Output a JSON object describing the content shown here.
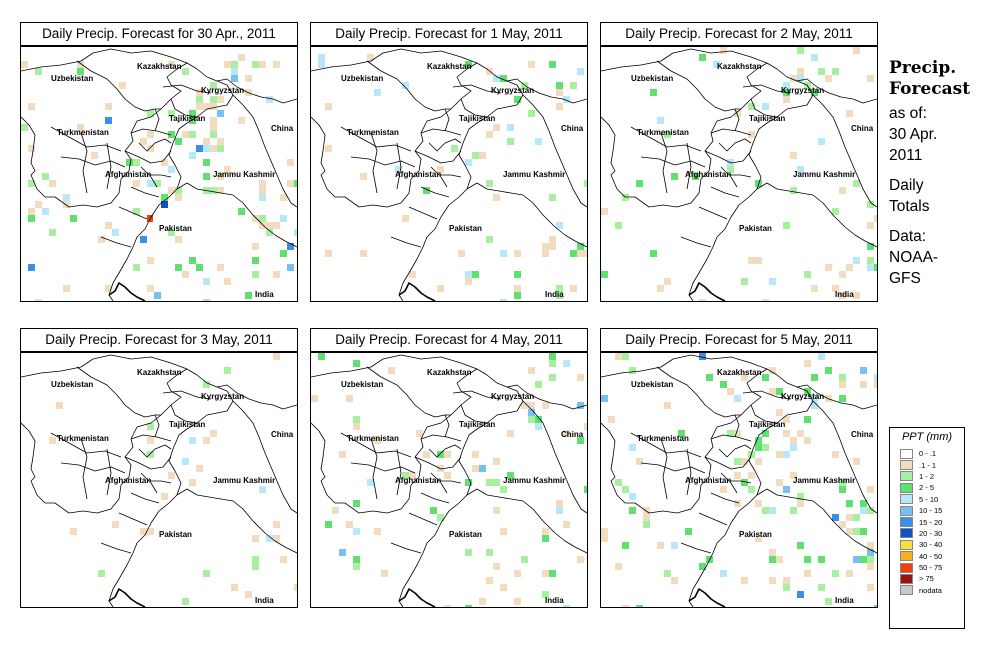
{
  "panels": [
    {
      "title": "Daily Precip. Forecast for  30 Apr., 2011"
    },
    {
      "title": "Daily Precip. Forecast for  1 May, 2011"
    },
    {
      "title": "Daily Precip. Forecast for  2 May, 2011"
    },
    {
      "title": "Daily Precip. Forecast for  3 May, 2011"
    },
    {
      "title": "Daily Precip. Forecast for  4 May, 2011"
    },
    {
      "title": "Daily Precip. Forecast for  5 May, 2011"
    }
  ],
  "countries": {
    "kazakhstan": "Kazakhstan",
    "uzbekistan": "Uzbekistan",
    "kyrgyzstan": "Kyrgyzstan",
    "tajikistan": "Tajikistan",
    "china": "China",
    "turkmenistan": "Turkmenistan",
    "afghanistan": "Afghanistan",
    "jammu_kashmir": "Jammu Kashmir",
    "pakistan": "Pakistan",
    "india": "India"
  },
  "sidebar": {
    "line1": "Precip.",
    "line2": "Forecast",
    "as_of_label": "as of:",
    "as_of_date_1": "30 Apr.",
    "as_of_date_2": "2011",
    "period_1": "Daily",
    "period_2": "Totals",
    "data_label": "Data:",
    "source_1": "NOAA-",
    "source_2": "GFS"
  },
  "legend": {
    "title": "PPT (mm)",
    "items": [
      {
        "label": "0 - .1",
        "color": "#ffffff"
      },
      {
        "label": ".1 - 1",
        "color": "#f2dcc0"
      },
      {
        "label": "1 - 2",
        "color": "#a8f0a0"
      },
      {
        "label": "2 - 5",
        "color": "#60e070"
      },
      {
        "label": "5 - 10",
        "color": "#b8e8f8"
      },
      {
        "label": "10 - 15",
        "color": "#78c0f0"
      },
      {
        "label": "15 - 20",
        "color": "#3890e8"
      },
      {
        "label": "20 - 30",
        "color": "#1050c8"
      },
      {
        "label": "30 - 40",
        "color": "#f8e040"
      },
      {
        "label": "40 - 50",
        "color": "#f8b020"
      },
      {
        "label": "50 - 75",
        "color": "#f04010"
      },
      {
        "label": "> 75",
        "color": "#a01010"
      },
      {
        "label": "nodata",
        "color": "#c8c8c8"
      }
    ]
  }
}
